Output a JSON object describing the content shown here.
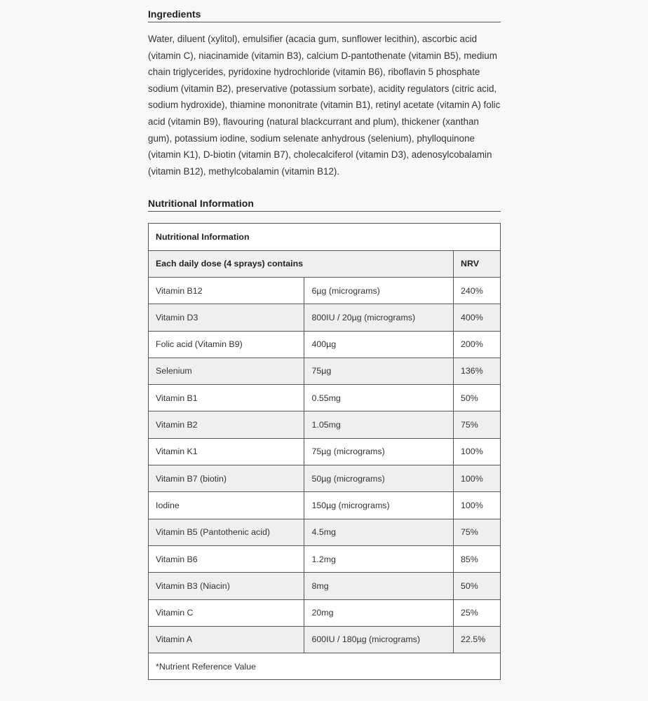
{
  "ingredients": {
    "heading": "Ingredients",
    "text": "Water, diluent (xylitol), emulsifier (acacia gum, sunflower lecithin), ascorbic acid (vitamin C), niacinamide (vitamin B3), calcium D-pantothenate (vitamin B5), medium chain triglycerides, pyridoxine hydrochloride (vitamin B6), riboflavin 5 phosphate sodium (vitamin B2), preservative (potassium sorbate), acidity regulators (citric acid, sodium hydroxide), thiamine mononitrate (vitamin B1), retinyl acetate (vitamin A) folic acid (vitamin B9), flavouring (natural blackcurrant and plum), thickener (xanthan gum), potassium iodine, sodium selenate anhydrous (selenium), phylloquinone (vitamin K1), D-biotin (vitamin B7), cholecalciferol (vitamin D3), adenosylcobalamin (vitamin B12), methylcobalamin (vitamin B12)."
  },
  "nutrition": {
    "heading": "Nutritional Information",
    "table_title": "Nutritional Information",
    "header_dose": "Each daily dose (4 sprays) contains",
    "header_nrv": "NRV",
    "rows": [
      {
        "name": "Vitamin B12",
        "amount": "6µg (micrograms)",
        "nrv": "240%"
      },
      {
        "name": "Vitamin D3",
        "amount": "800IU / 20µg (micrograms)",
        "nrv": "400%"
      },
      {
        "name": "Folic acid (Vitamin B9)",
        "amount": "400µg",
        "nrv": "200%"
      },
      {
        "name": "Selenium",
        "amount": "75µg",
        "nrv": "136%"
      },
      {
        "name": "Vitamin B1",
        "amount": "0.55mg",
        "nrv": "50%"
      },
      {
        "name": "Vitamin B2",
        "amount": "1.05mg",
        "nrv": "75%"
      },
      {
        "name": "Vitamin K1",
        "amount": "75µg (micrograms)",
        "nrv": "100%"
      },
      {
        "name": "Vitamin B7 (biotin)",
        "amount": "50µg (micrograms)",
        "nrv": "100%"
      },
      {
        "name": "Iodine",
        "amount": "150µg (micrograms)",
        "nrv": "100%"
      },
      {
        "name": "Vitamin B5 (Pantothenic acid)",
        "amount": "4.5mg",
        "nrv": "75%"
      },
      {
        "name": "Vitamin B6",
        "amount": "1.2mg",
        "nrv": "85%"
      },
      {
        "name": "Vitamin B3 (Niacin)",
        "amount": "8mg",
        "nrv": "50%"
      },
      {
        "name": "Vitamin C",
        "amount": "20mg",
        "nrv": "25%"
      },
      {
        "name": "Vitamin A",
        "amount": "600IU / 180µg (micrograms)",
        "nrv": "22.5%"
      }
    ],
    "footnote": "*Nutrient Reference Value"
  }
}
